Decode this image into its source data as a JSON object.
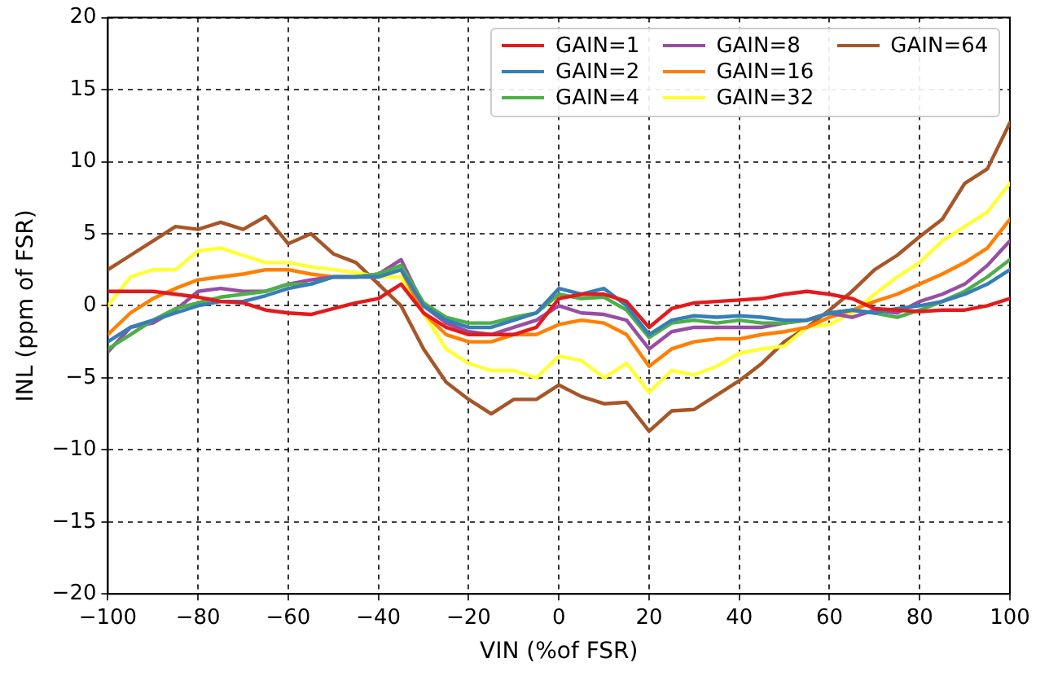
{
  "chart_data": {
    "type": "line",
    "xlabel": "VIN (%of FSR)",
    "ylabel": "INL (ppm of FSR)",
    "x": [
      -100,
      -95,
      -90,
      -85,
      -80,
      -75,
      -70,
      -65,
      -60,
      -55,
      -50,
      -45,
      -40,
      -35,
      -30,
      -25,
      -20,
      -15,
      -10,
      -5,
      0,
      5,
      10,
      15,
      20,
      25,
      30,
      35,
      40,
      45,
      50,
      55,
      60,
      65,
      70,
      75,
      80,
      85,
      90,
      95,
      100
    ],
    "xlim": [
      -100,
      100
    ],
    "xticks": [
      -100,
      -80,
      -60,
      -40,
      -20,
      0,
      20,
      40,
      60,
      80,
      100
    ],
    "ylim": [
      -20,
      20
    ],
    "yticks": [
      -20,
      -15,
      -10,
      -5,
      0,
      5,
      10,
      15,
      20
    ],
    "grid": true,
    "legend": "top right",
    "line_style": "solid",
    "marker": "none",
    "series": [
      {
        "name": "GAIN=1",
        "color": "#e41a1c",
        "values": [
          1,
          1,
          1,
          0.8,
          0.6,
          0.3,
          0.2,
          -0.3,
          -0.5,
          -0.6,
          -0.2,
          0.2,
          0.5,
          1.5,
          -0.5,
          -1.5,
          -2,
          -2,
          -2,
          -1.5,
          0.5,
          0.8,
          0.8,
          0.3,
          -1.5,
          -0.2,
          0.2,
          0.3,
          0.4,
          0.5,
          0.8,
          1,
          0.8,
          0.5,
          -0.2,
          -0.3,
          -0.4,
          -0.3,
          -0.3,
          0,
          0.5
        ]
      },
      {
        "name": "GAIN=2",
        "color": "#377eb8",
        "values": [
          -2.5,
          -1.5,
          -1,
          -0.5,
          0,
          0.3,
          0.3,
          0.7,
          1.2,
          1.5,
          2,
          2,
          2,
          2.5,
          0,
          -1,
          -1.5,
          -1.5,
          -1,
          -0.5,
          1.2,
          0.8,
          1.2,
          0,
          -2,
          -1,
          -0.7,
          -0.8,
          -0.7,
          -0.8,
          -1,
          -1,
          -0.5,
          -0.3,
          -0.5,
          -0.2,
          0,
          0.3,
          0.8,
          1.5,
          2.5
        ]
      },
      {
        "name": "GAIN=4",
        "color": "#4daf4a",
        "values": [
          -3,
          -2,
          -1,
          -0.2,
          0.2,
          0.6,
          0.8,
          1,
          1.5,
          1.5,
          2,
          2,
          2.2,
          2.8,
          0.2,
          -0.8,
          -1.2,
          -1.2,
          -0.8,
          -0.5,
          0.8,
          0.5,
          0.6,
          -0.3,
          -2.2,
          -1.2,
          -1,
          -1.2,
          -1,
          -1.2,
          -1.2,
          -1,
          -0.5,
          -0.3,
          -0.5,
          -0.8,
          -0.3,
          0.3,
          1,
          2,
          3.2
        ]
      },
      {
        "name": "GAIN=8",
        "color": "#984ea3",
        "values": [
          -3.2,
          -1.5,
          -1.2,
          -0.3,
          1,
          1.2,
          1,
          1,
          1.5,
          1.8,
          2,
          2,
          2.2,
          3.2,
          0,
          -1.2,
          -1.8,
          -2,
          -1.5,
          -1,
          0,
          -0.5,
          -0.6,
          -1,
          -3,
          -1.8,
          -1.5,
          -1.5,
          -1.5,
          -1.5,
          -1.2,
          -1,
          -0.5,
          -0.8,
          -0.3,
          -0.5,
          0.3,
          0.8,
          1.5,
          2.8,
          4.5
        ]
      },
      {
        "name": "GAIN=16",
        "color": "#ff7f00",
        "values": [
          -2,
          -0.5,
          0.5,
          1.2,
          1.8,
          2,
          2.2,
          2.5,
          2.5,
          2.2,
          2,
          2,
          2,
          2.5,
          -0.5,
          -2,
          -2.5,
          -2.5,
          -2,
          -2,
          -1.3,
          -1,
          -1.2,
          -2,
          -4.2,
          -3,
          -2.5,
          -2.3,
          -2.3,
          -2,
          -1.8,
          -1.5,
          -0.8,
          -0.3,
          0.3,
          0.8,
          1.5,
          2.2,
          3,
          4,
          6
        ]
      },
      {
        "name": "GAIN=32",
        "color": "#ffff33",
        "values": [
          0,
          2,
          2.5,
          2.5,
          3.8,
          4,
          3.5,
          3,
          3,
          2.7,
          2.5,
          2.3,
          2,
          2,
          -0.5,
          -3,
          -4,
          -4.5,
          -4.5,
          -5,
          -3.5,
          -3.8,
          -5,
          -4,
          -6,
          -4.5,
          -4.8,
          -4.2,
          -3.3,
          -3,
          -2.8,
          -1.5,
          -1.3,
          -0.5,
          0.8,
          2,
          3,
          4.5,
          5.5,
          6.5,
          8.5
        ]
      },
      {
        "name": "GAIN=64",
        "color": "#a65628",
        "values": [
          2.5,
          3.5,
          4.5,
          5.5,
          5.3,
          5.8,
          5.3,
          6.2,
          4.3,
          5,
          3.6,
          3,
          1.5,
          0,
          -3,
          -5.3,
          -6.5,
          -7.5,
          -6.5,
          -6.5,
          -5.5,
          -6.3,
          -6.8,
          -6.7,
          -8.7,
          -7.3,
          -7.2,
          -6.2,
          -5.2,
          -4,
          -2.5,
          -1.5,
          -0.3,
          1,
          2.5,
          3.5,
          4.8,
          6,
          8.5,
          9.5,
          12.7
        ]
      }
    ]
  }
}
